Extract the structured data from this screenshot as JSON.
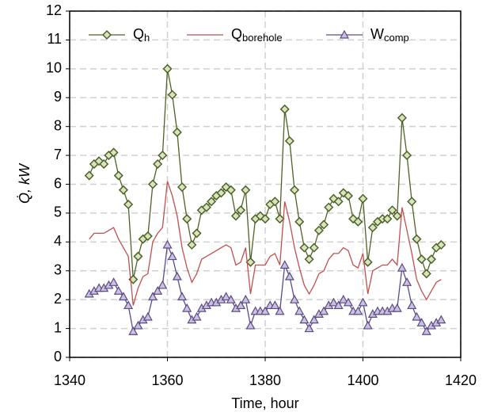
{
  "chart_data": {
    "type": "line",
    "xlabel": "Time, hour",
    "ylabel": "Q̇, kW",
    "x": [
      1344,
      1345,
      1346,
      1347,
      1348,
      1349,
      1350,
      1351,
      1352,
      1353,
      1354,
      1355,
      1356,
      1357,
      1358,
      1359,
      1360,
      1361,
      1362,
      1363,
      1364,
      1365,
      1366,
      1367,
      1368,
      1369,
      1370,
      1371,
      1372,
      1373,
      1374,
      1375,
      1376,
      1377,
      1378,
      1379,
      1380,
      1381,
      1382,
      1383,
      1384,
      1385,
      1386,
      1387,
      1388,
      1389,
      1390,
      1391,
      1392,
      1393,
      1394,
      1395,
      1396,
      1397,
      1398,
      1399,
      1400,
      1401,
      1402,
      1403,
      1404,
      1405,
      1406,
      1407,
      1408,
      1409,
      1410,
      1411,
      1412,
      1413,
      1414,
      1415,
      1416
    ],
    "series": [
      {
        "name": "Qh",
        "color": "#4f6228",
        "marker": "diamond",
        "marker_fill": "#d7e4bd",
        "values": [
          6.3,
          6.7,
          6.8,
          6.7,
          7.0,
          7.1,
          6.3,
          5.8,
          5.3,
          2.7,
          3.5,
          4.1,
          4.2,
          6.0,
          6.7,
          7.0,
          10.0,
          9.1,
          7.8,
          5.9,
          4.8,
          3.9,
          4.3,
          5.1,
          5.2,
          5.4,
          5.6,
          5.7,
          5.9,
          5.8,
          4.9,
          5.1,
          5.8,
          3.3,
          4.8,
          4.9,
          4.8,
          5.3,
          5.4,
          4.8,
          8.6,
          7.5,
          5.8,
          4.7,
          3.8,
          3.4,
          3.8,
          4.4,
          4.6,
          5.2,
          5.5,
          5.4,
          5.7,
          5.6,
          4.8,
          4.7,
          5.5,
          3.3,
          4.5,
          4.7,
          4.8,
          4.8,
          5.1,
          4.9,
          8.3,
          7.0,
          5.4,
          4.1,
          3.4,
          2.9,
          3.4,
          3.8,
          3.9
        ]
      },
      {
        "name": "Qborehole",
        "color": "#c0504d",
        "marker": "none",
        "values": [
          4.1,
          4.3,
          4.3,
          4.3,
          4.4,
          4.5,
          4.1,
          3.8,
          3.5,
          1.8,
          2.4,
          2.8,
          2.9,
          4.0,
          4.3,
          4.5,
          6.1,
          5.6,
          4.9,
          3.8,
          3.1,
          2.6,
          2.9,
          3.4,
          3.5,
          3.6,
          3.7,
          3.8,
          3.9,
          3.8,
          3.2,
          3.3,
          3.8,
          2.2,
          3.2,
          3.2,
          3.2,
          3.5,
          3.6,
          3.2,
          5.4,
          4.7,
          3.8,
          3.1,
          2.5,
          2.2,
          2.5,
          2.9,
          3.0,
          3.4,
          3.6,
          3.6,
          3.8,
          3.7,
          3.2,
          3.1,
          3.6,
          2.2,
          3.0,
          3.1,
          3.2,
          3.2,
          3.4,
          3.2,
          5.2,
          4.4,
          3.6,
          2.7,
          2.3,
          2.0,
          2.3,
          2.6,
          2.7
        ]
      },
      {
        "name": "Wcomp",
        "color": "#5b4a8b",
        "marker": "triangle",
        "marker_fill": "#ccc1da",
        "values": [
          2.2,
          2.3,
          2.4,
          2.4,
          2.5,
          2.6,
          2.3,
          2.1,
          1.8,
          0.9,
          1.1,
          1.3,
          1.4,
          2.1,
          2.3,
          2.5,
          3.9,
          3.5,
          2.8,
          2.1,
          1.7,
          1.3,
          1.4,
          1.7,
          1.8,
          1.9,
          1.9,
          2.0,
          2.1,
          2.0,
          1.7,
          1.8,
          2.0,
          1.1,
          1.6,
          1.6,
          1.6,
          1.8,
          1.8,
          1.6,
          3.2,
          2.8,
          2.0,
          1.6,
          1.3,
          1.0,
          1.3,
          1.5,
          1.6,
          1.8,
          1.9,
          1.8,
          2.0,
          1.9,
          1.6,
          1.6,
          1.9,
          1.1,
          1.5,
          1.6,
          1.6,
          1.6,
          1.7,
          1.7,
          3.1,
          2.6,
          1.8,
          1.4,
          1.2,
          0.9,
          1.1,
          1.2,
          1.3
        ]
      }
    ],
    "xlim": [
      1340,
      1420
    ],
    "xticks": [
      1340,
      1360,
      1380,
      1400,
      1420
    ],
    "ylim": [
      0,
      12
    ],
    "yticks": [
      0,
      1,
      2,
      3,
      4,
      5,
      6,
      7,
      8,
      9,
      10,
      11,
      12
    ],
    "grid": true,
    "legend": "top"
  }
}
